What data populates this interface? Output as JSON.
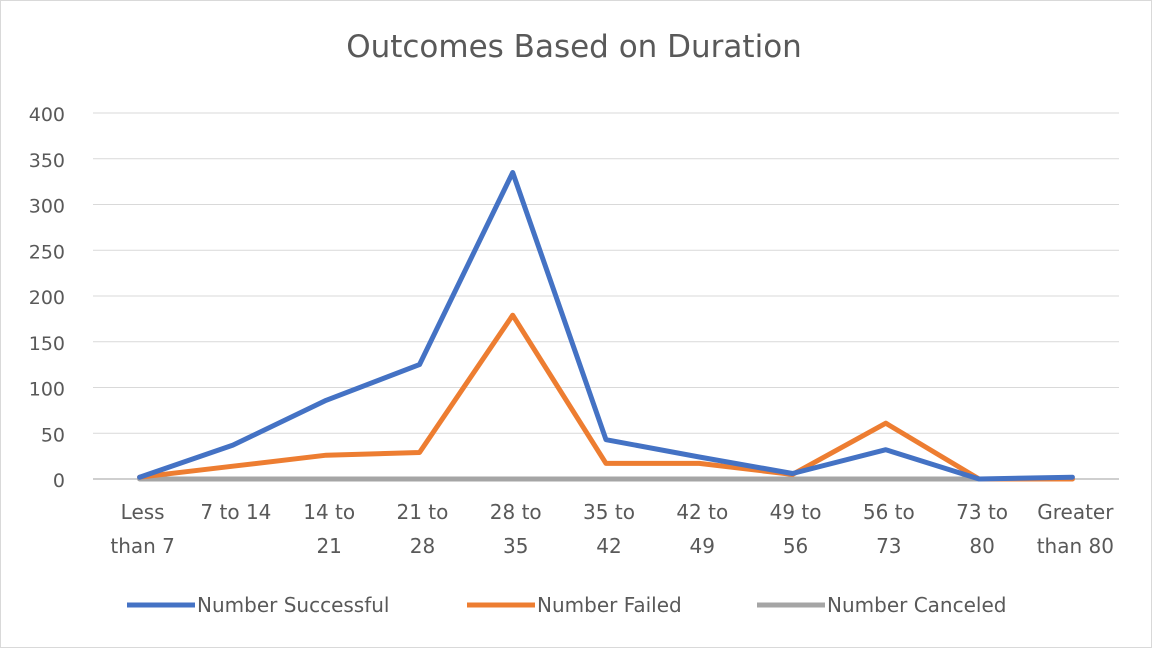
{
  "chart_data": {
    "type": "line",
    "title": "Outcomes Based on Duration",
    "categories": [
      [
        "Less",
        "than 7"
      ],
      [
        "7 to 14"
      ],
      [
        "14 to",
        "21"
      ],
      [
        "21 to",
        "28"
      ],
      [
        "28 to",
        "35"
      ],
      [
        "35 to",
        "42"
      ],
      [
        "42 to",
        "49"
      ],
      [
        "49 to",
        "56"
      ],
      [
        "56 to",
        "73"
      ],
      [
        "73 to",
        "80"
      ],
      [
        "Greater",
        "than 80"
      ]
    ],
    "ylim": [
      0,
      400
    ],
    "yticks": [
      0,
      50,
      100,
      150,
      200,
      250,
      300,
      350,
      400
    ],
    "grid": true,
    "legend_position": "bottom",
    "series": [
      {
        "name": "Number Successful",
        "color": "#4472C4",
        "values": [
          2,
          37,
          86,
          125,
          335,
          43,
          24,
          6,
          32,
          0,
          2
        ]
      },
      {
        "name": "Number Failed",
        "color": "#ED7D31",
        "values": [
          2,
          14,
          26,
          29,
          179,
          17,
          17,
          5,
          61,
          0,
          0
        ]
      },
      {
        "name": "Number Canceled",
        "color": "#A5A5A5",
        "values": [
          0,
          0,
          0,
          0,
          0,
          0,
          0,
          0,
          0,
          0,
          0
        ]
      }
    ]
  }
}
